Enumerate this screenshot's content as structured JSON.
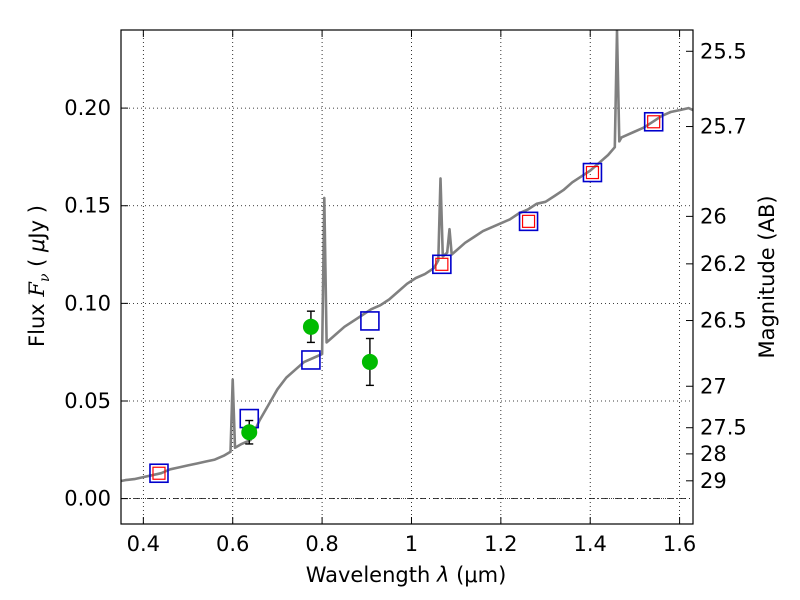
{
  "chart_data": {
    "type": "line",
    "title": "",
    "xlabel": "Wavelength  λ (μm)",
    "ylabel": "Flux  F_ν  ( μJy )",
    "ylabel_parts": {
      "pre": "Flux",
      "sym": "F",
      "sub": "ν",
      "paren_open": "(",
      "mu": "μ",
      "unit": "Jy",
      "paren_close": ")"
    },
    "xlabel_parts": {
      "pre": "Wavelength",
      "sym": "λ",
      "unit": "(μm)"
    },
    "y2label": "Magnitude (AB)",
    "xlim": [
      0.35,
      1.63
    ],
    "ylim": [
      -0.013,
      0.24
    ],
    "grid": true,
    "x_ticks": [
      {
        "value": 0.4,
        "label": "0.4"
      },
      {
        "value": 0.6,
        "label": "0.6"
      },
      {
        "value": 0.8,
        "label": "0.8"
      },
      {
        "value": 1.0,
        "label": "1"
      },
      {
        "value": 1.2,
        "label": "1.2"
      },
      {
        "value": 1.4,
        "label": "1.4"
      },
      {
        "value": 1.6,
        "label": "1.6"
      }
    ],
    "y_ticks": [
      {
        "value": 0.0,
        "label": "0.00"
      },
      {
        "value": 0.05,
        "label": "0.05"
      },
      {
        "value": 0.1,
        "label": "0.10"
      },
      {
        "value": 0.15,
        "label": "0.15"
      },
      {
        "value": 0.2,
        "label": "0.20"
      }
    ],
    "y2_ticks": [
      {
        "value": 25.5,
        "label": "25.5"
      },
      {
        "value": 25.7,
        "label": "25.7"
      },
      {
        "value": 26.0,
        "label": "26"
      },
      {
        "value": 26.2,
        "label": "26.2"
      },
      {
        "value": 26.5,
        "label": "26.5"
      },
      {
        "value": 27.0,
        "label": "27"
      },
      {
        "value": 27.5,
        "label": "27.5"
      },
      {
        "value": 28.0,
        "label": "28"
      },
      {
        "value": 29.0,
        "label": "29"
      }
    ],
    "colors": {
      "spectrum": "#808080",
      "model_photometry": "#0000cc",
      "filter_photometry": "#ff0000",
      "observed": "#00bb00",
      "errorbar": "#000000",
      "zero_line": "#000000"
    },
    "series": [
      {
        "kind": "spectrum",
        "x": [
          0.35,
          0.36,
          0.38,
          0.4,
          0.42,
          0.44,
          0.46,
          0.48,
          0.5,
          0.52,
          0.54,
          0.56,
          0.58,
          0.595,
          0.6,
          0.605,
          0.62,
          0.64,
          0.66,
          0.68,
          0.7,
          0.72,
          0.74,
          0.76,
          0.78,
          0.8,
          0.805,
          0.81,
          0.815,
          0.83,
          0.85,
          0.87,
          0.89,
          0.91,
          0.93,
          0.95,
          0.97,
          0.99,
          1.01,
          1.03,
          1.05,
          1.06,
          1.065,
          1.07,
          1.08,
          1.085,
          1.09,
          1.1,
          1.12,
          1.14,
          1.16,
          1.18,
          1.2,
          1.22,
          1.24,
          1.26,
          1.28,
          1.3,
          1.32,
          1.34,
          1.36,
          1.38,
          1.4,
          1.42,
          1.44,
          1.455,
          1.46,
          1.465,
          1.47,
          1.48,
          1.5,
          1.52,
          1.54,
          1.56,
          1.58,
          1.6,
          1.62,
          1.63
        ],
        "y": [
          0.009,
          0.0095,
          0.01,
          0.011,
          0.012,
          0.013,
          0.015,
          0.016,
          0.017,
          0.018,
          0.019,
          0.02,
          0.022,
          0.024,
          0.061,
          0.026,
          0.028,
          0.03,
          0.04,
          0.048,
          0.056,
          0.062,
          0.066,
          0.07,
          0.072,
          0.074,
          0.154,
          0.08,
          0.081,
          0.084,
          0.088,
          0.091,
          0.094,
          0.097,
          0.099,
          0.102,
          0.106,
          0.11,
          0.113,
          0.115,
          0.118,
          0.122,
          0.164,
          0.124,
          0.126,
          0.138,
          0.125,
          0.127,
          0.131,
          0.134,
          0.137,
          0.139,
          0.141,
          0.143,
          0.146,
          0.148,
          0.151,
          0.152,
          0.155,
          0.158,
          0.162,
          0.165,
          0.168,
          0.172,
          0.176,
          0.18,
          0.25,
          0.183,
          0.185,
          0.186,
          0.188,
          0.19,
          0.193,
          0.196,
          0.198,
          0.199,
          0.2,
          0.199
        ]
      },
      {
        "kind": "model_photometry",
        "x": [
          0.435,
          0.637,
          0.775,
          0.907,
          1.068,
          1.262,
          1.405,
          1.542
        ],
        "y": [
          0.013,
          0.041,
          0.071,
          0.091,
          0.12,
          0.142,
          0.167,
          0.193
        ]
      },
      {
        "kind": "filter_photometry",
        "x": [
          0.435,
          1.068,
          1.262,
          1.405,
          1.542
        ],
        "y": [
          0.013,
          0.12,
          0.142,
          0.167,
          0.193
        ]
      },
      {
        "kind": "observed",
        "x": [
          0.637,
          0.775,
          0.907
        ],
        "y": [
          0.034,
          0.088,
          0.07
        ],
        "yerr": [
          0.006,
          0.008,
          0.012
        ]
      }
    ]
  }
}
